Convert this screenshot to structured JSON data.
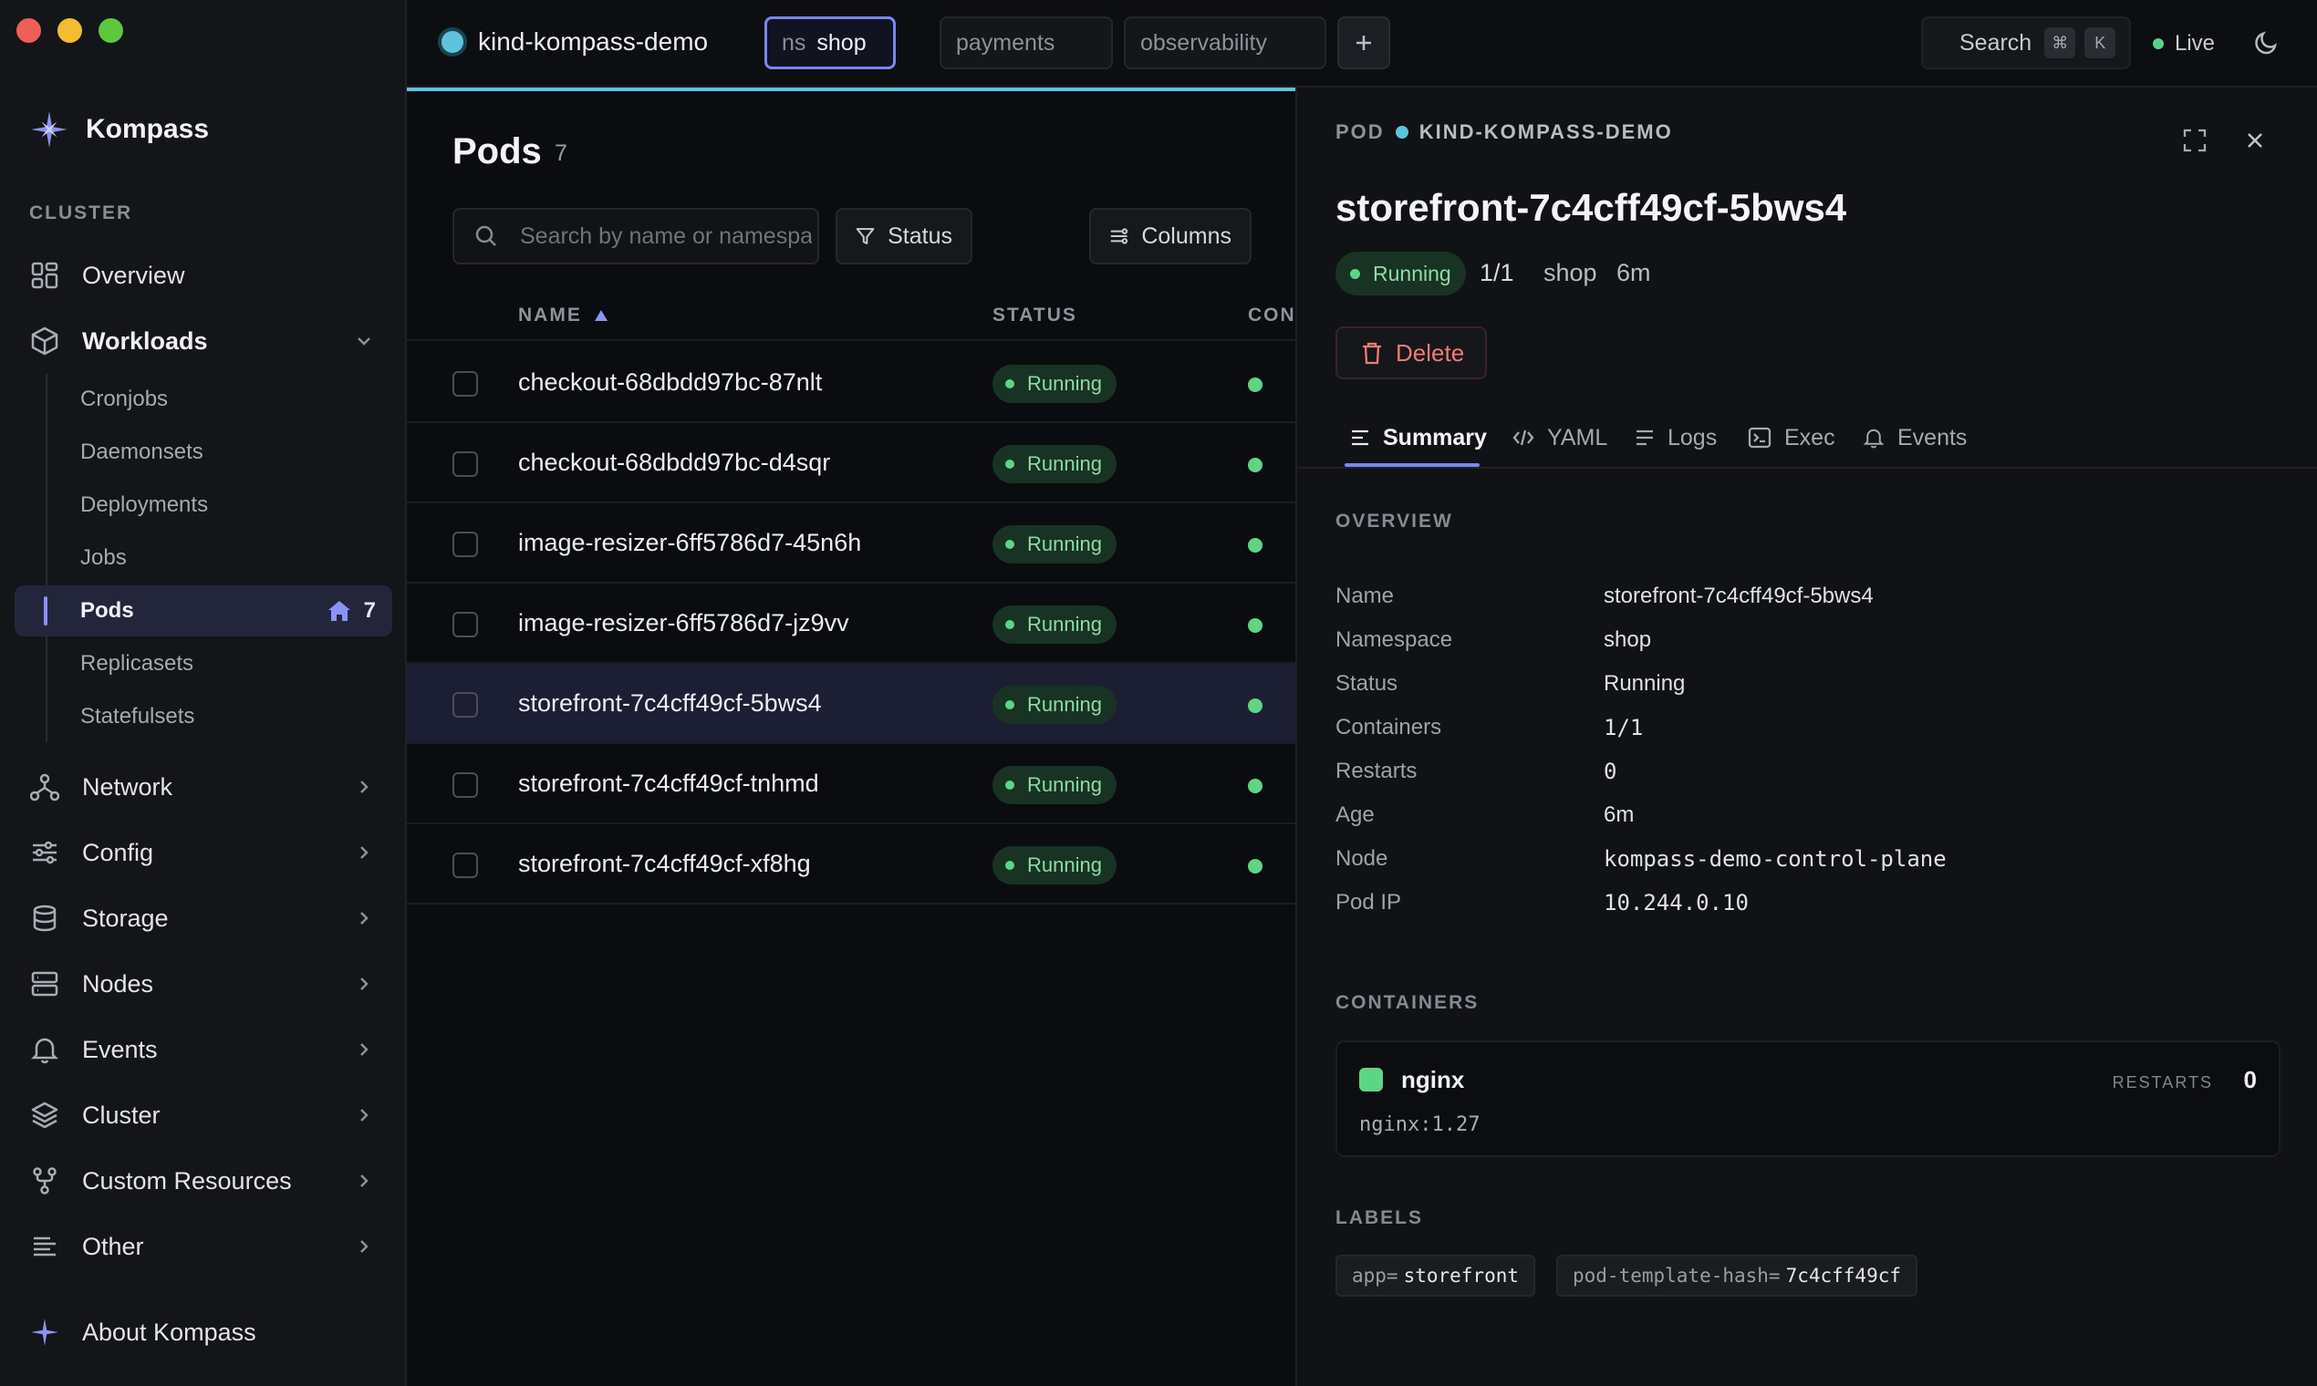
{
  "window": {
    "controls": [
      "close",
      "minimize",
      "zoom"
    ]
  },
  "brand": {
    "name": "Kompass"
  },
  "sidebar": {
    "section_label": "CLUSTER",
    "items": {
      "overview": "Overview",
      "workloads": "Workloads",
      "network": "Network",
      "config": "Config",
      "storage": "Storage",
      "nodes": "Nodes",
      "events": "Events",
      "cluster": "Cluster",
      "custom_resources": "Custom Resources",
      "other": "Other"
    },
    "workloads_sub": {
      "cronjobs": "Cronjobs",
      "daemonsets": "Daemonsets",
      "deployments": "Deployments",
      "jobs": "Jobs",
      "pods": "Pods",
      "pods_count": "7",
      "replicasets": "Replicasets",
      "statefulsets": "Statefulsets"
    },
    "about": "About Kompass"
  },
  "topbar": {
    "context": "kind-kompass-demo",
    "tabs": {
      "active_prefix": "ns",
      "active": "shop",
      "t2": "payments",
      "t3": "observability"
    },
    "search_label": "Search",
    "kbd1": "⌘",
    "kbd2": "K",
    "live": "Live",
    "accent_color": "#5ec3de"
  },
  "list": {
    "title": "Pods",
    "count": "7",
    "search_placeholder": "Search by name or namespace",
    "status_button": "Status",
    "columns_button": "Columns",
    "headers": {
      "name": "NAME",
      "status": "STATUS",
      "containers": "CONT"
    },
    "rows": [
      {
        "name": "checkout-68dbdd97bc-87nlt",
        "status": "Running"
      },
      {
        "name": "checkout-68dbdd97bc-d4sqr",
        "status": "Running"
      },
      {
        "name": "image-resizer-6ff5786d7-45n6h",
        "status": "Running"
      },
      {
        "name": "image-resizer-6ff5786d7-jz9vv",
        "status": "Running"
      },
      {
        "name": "storefront-7c4cff49cf-5bws4",
        "status": "Running"
      },
      {
        "name": "storefront-7c4cff49cf-tnhmd",
        "status": "Running"
      },
      {
        "name": "storefront-7c4cff49cf-xf8hg",
        "status": "Running"
      }
    ]
  },
  "detail": {
    "kind": "POD",
    "context": "KIND-KOMPASS-DEMO",
    "title": "storefront-7c4cff49cf-5bws4",
    "status": "Running",
    "ready": "1/1",
    "namespace": "shop",
    "age": "6m",
    "delete_label": "Delete",
    "tabs": {
      "summary": "Summary",
      "yaml": "YAML",
      "logs": "Logs",
      "exec": "Exec",
      "events": "Events"
    },
    "overview_label": "OVERVIEW",
    "overview": {
      "name_k": "Name",
      "name_v": "storefront-7c4cff49cf-5bws4",
      "ns_k": "Namespace",
      "ns_v": "shop",
      "status_k": "Status",
      "status_v": "Running",
      "containers_k": "Containers",
      "containers_v": "1/1",
      "restarts_k": "Restarts",
      "restarts_v": "0",
      "age_k": "Age",
      "age_v": "6m",
      "node_k": "Node",
      "node_v": "kompass-demo-control-plane",
      "ip_k": "Pod IP",
      "ip_v": "10.244.0.10"
    },
    "containers_label": "CONTAINERS",
    "container": {
      "name": "nginx",
      "image": "nginx:1.27",
      "restarts_label": "RESTARTS",
      "restarts": "0"
    },
    "labels_label": "LABELS",
    "labels": [
      {
        "key": "app=",
        "value": "storefront"
      },
      {
        "key": "pod-template-hash=",
        "value": "7c4cff49cf"
      }
    ]
  }
}
